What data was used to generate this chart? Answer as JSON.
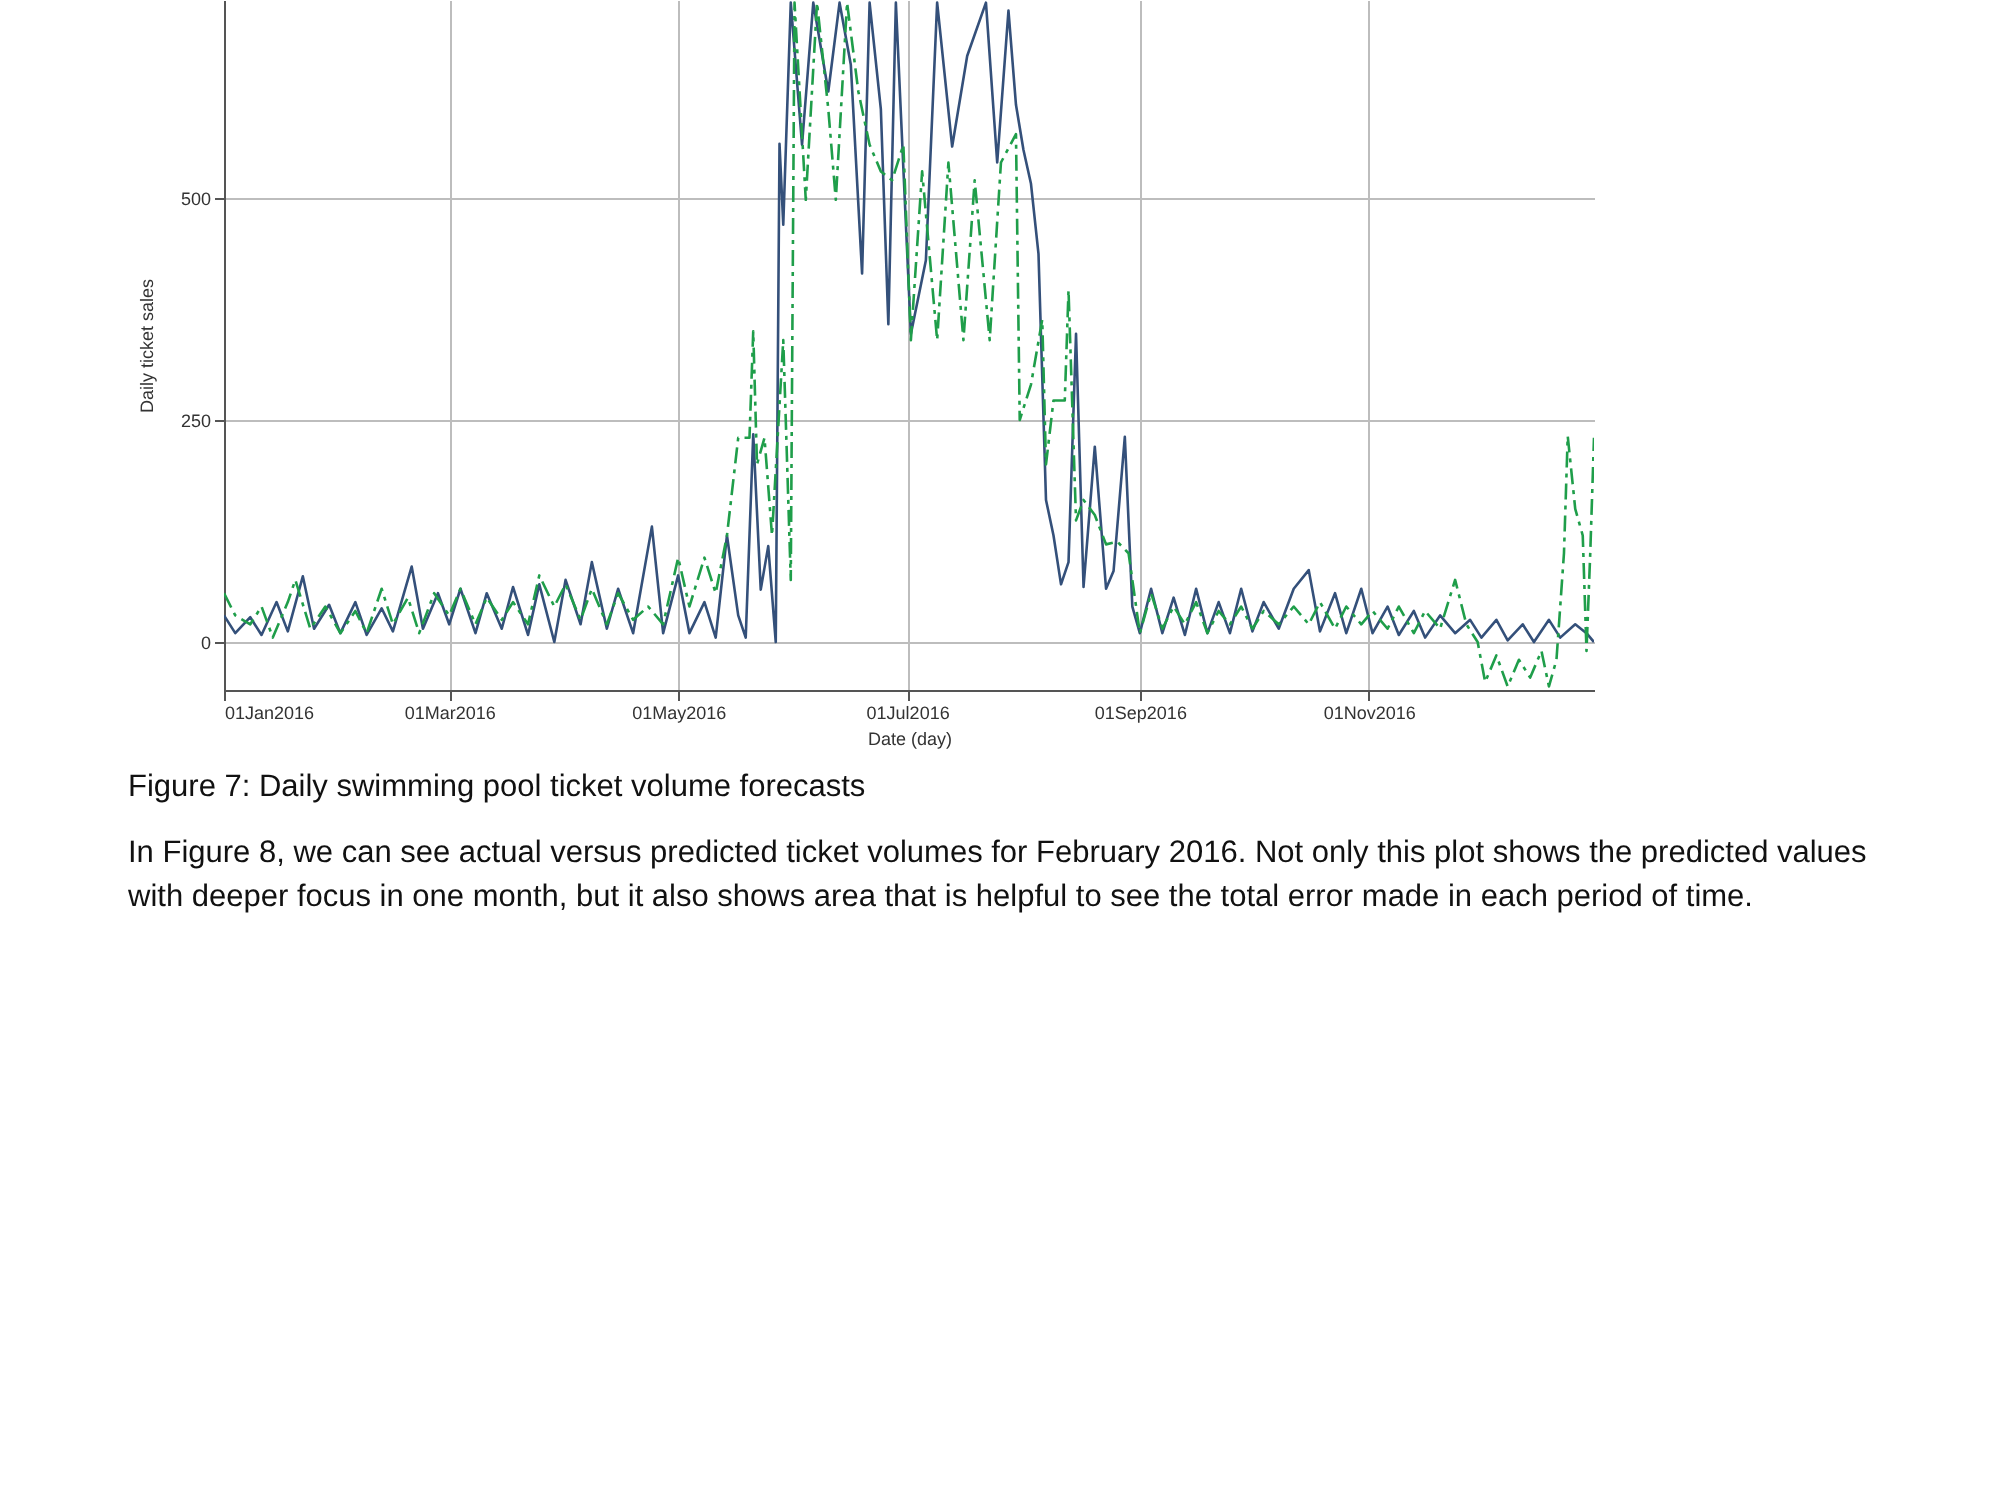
{
  "chart_data": {
    "type": "line",
    "xlabel": "Date (day)",
    "ylabel": "Daily ticket sales",
    "xlim": [
      "2016-01-01",
      "2016-12-31"
    ],
    "xticks": [
      {
        "value": "2016-01-01",
        "label": "01Jan2016"
      },
      {
        "value": "2016-03-01",
        "label": "01Mar2016"
      },
      {
        "value": "2016-05-01",
        "label": "01May2016"
      },
      {
        "value": "2016-07-01",
        "label": "01Jul2016"
      },
      {
        "value": "2016-09-01",
        "label": "01Sep2016"
      },
      {
        "value": "2016-11-01",
        "label": "01Nov2016"
      }
    ],
    "ylim": [
      -54,
      723
    ],
    "yticks": [
      0,
      250,
      500
    ],
    "grid": true,
    "series": [
      {
        "color": "#34507a",
        "line_style": "solid",
        "x": [
          "2016-01-01",
          "2016-01-04",
          "2016-01-08",
          "2016-01-11",
          "2016-01-15",
          "2016-01-18",
          "2016-01-22",
          "2016-01-25",
          "2016-01-29",
          "2016-02-01",
          "2016-02-05",
          "2016-02-08",
          "2016-02-12",
          "2016-02-15",
          "2016-02-20",
          "2016-02-23",
          "2016-02-27",
          "2016-03-01",
          "2016-03-04",
          "2016-03-08",
          "2016-03-11",
          "2016-03-15",
          "2016-03-18",
          "2016-03-22",
          "2016-03-25",
          "2016-03-29",
          "2016-04-01",
          "2016-04-05",
          "2016-04-08",
          "2016-04-12",
          "2016-04-15",
          "2016-04-19",
          "2016-04-24",
          "2016-04-27",
          "2016-05-01",
          "2016-05-04",
          "2016-05-08",
          "2016-05-11",
          "2016-05-14",
          "2016-05-17",
          "2016-05-19",
          "2016-05-21",
          "2016-05-23",
          "2016-05-25",
          "2016-05-27",
          "2016-05-28",
          "2016-05-29",
          "2016-05-31",
          "2016-06-03",
          "2016-06-06",
          "2016-06-10",
          "2016-06-13",
          "2016-06-16",
          "2016-06-19",
          "2016-06-21",
          "2016-06-24",
          "2016-06-26",
          "2016-06-28",
          "2016-07-02",
          "2016-07-06",
          "2016-07-09",
          "2016-07-13",
          "2016-07-17",
          "2016-07-22",
          "2016-07-25",
          "2016-07-28",
          "2016-07-30",
          "2016-08-01",
          "2016-08-03",
          "2016-08-05",
          "2016-08-07",
          "2016-08-09",
          "2016-08-11",
          "2016-08-13",
          "2016-08-15",
          "2016-08-17",
          "2016-08-20",
          "2016-08-23",
          "2016-08-25",
          "2016-08-28",
          "2016-08-30",
          "2016-09-01",
          "2016-09-04",
          "2016-09-07",
          "2016-09-10",
          "2016-09-13",
          "2016-09-16",
          "2016-09-19",
          "2016-09-22",
          "2016-09-25",
          "2016-09-28",
          "2016-10-01",
          "2016-10-04",
          "2016-10-08",
          "2016-10-12",
          "2016-10-16",
          "2016-10-19",
          "2016-10-23",
          "2016-10-26",
          "2016-10-30",
          "2016-11-02",
          "2016-11-06",
          "2016-11-09",
          "2016-11-13",
          "2016-11-16",
          "2016-11-20",
          "2016-11-24",
          "2016-11-28",
          "2016-12-01",
          "2016-12-05",
          "2016-12-08",
          "2016-12-12",
          "2016-12-15",
          "2016-12-19",
          "2016-12-22",
          "2016-12-26",
          "2016-12-29",
          "2016-12-31"
        ],
        "values": [
          30,
          10,
          28,
          8,
          45,
          12,
          74,
          15,
          42,
          10,
          45,
          8,
          38,
          12,
          85,
          15,
          55,
          20,
          60,
          10,
          55,
          15,
          62,
          8,
          65,
          0,
          70,
          20,
          90,
          15,
          60,
          10,
          130,
          10,
          75,
          10,
          45,
          5,
          120,
          30,
          5,
          234,
          59,
          108,
          0,
          561,
          470,
          720,
          560,
          720,
          620,
          720,
          650,
          415,
          720,
          600,
          358,
          720,
          347,
          430,
          720,
          558,
          660,
          720,
          540,
          711,
          605,
          554,
          516,
          437,
          160,
          120,
          65,
          90,
          347,
          62,
          220,
          60,
          80,
          231,
          40,
          10,
          60,
          10,
          50,
          8,
          60,
          10,
          45,
          10,
          60,
          12,
          45,
          15,
          60,
          81,
          12,
          55,
          10,
          60,
          10,
          40,
          8,
          35,
          5,
          30,
          10,
          25,
          5,
          25,
          2,
          20,
          0,
          25,
          5,
          20,
          10,
          0
        ]
      },
      {
        "color": "#1f9e4a",
        "line_style": "dashed",
        "x": [
          "2016-01-01",
          "2016-01-04",
          "2016-01-08",
          "2016-01-11",
          "2016-01-14",
          "2016-01-18",
          "2016-01-20",
          "2016-01-24",
          "2016-01-28",
          "2016-02-01",
          "2016-02-05",
          "2016-02-08",
          "2016-02-12",
          "2016-02-15",
          "2016-02-19",
          "2016-02-22",
          "2016-02-26",
          "2016-03-01",
          "2016-03-04",
          "2016-03-08",
          "2016-03-11",
          "2016-03-15",
          "2016-03-18",
          "2016-03-22",
          "2016-03-25",
          "2016-03-29",
          "2016-04-01",
          "2016-04-05",
          "2016-04-08",
          "2016-04-12",
          "2016-04-15",
          "2016-04-19",
          "2016-04-23",
          "2016-04-27",
          "2016-05-01",
          "2016-05-04",
          "2016-05-08",
          "2016-05-11",
          "2016-05-14",
          "2016-05-17",
          "2016-05-20",
          "2016-05-21",
          "2016-05-22",
          "2016-05-24",
          "2016-05-26",
          "2016-05-29",
          "2016-05-31",
          "2016-06-01",
          "2016-06-04",
          "2016-06-07",
          "2016-06-10",
          "2016-06-12",
          "2016-06-15",
          "2016-06-18",
          "2016-06-21",
          "2016-06-24",
          "2016-06-27",
          "2016-06-30",
          "2016-07-02",
          "2016-07-05",
          "2016-07-09",
          "2016-07-12",
          "2016-07-16",
          "2016-07-19",
          "2016-07-23",
          "2016-07-26",
          "2016-07-30",
          "2016-07-31",
          "2016-08-03",
          "2016-08-06",
          "2016-08-07",
          "2016-08-09",
          "2016-08-12",
          "2016-08-13",
          "2016-08-15",
          "2016-08-17",
          "2016-08-20",
          "2016-08-23",
          "2016-08-26",
          "2016-08-29",
          "2016-09-01",
          "2016-09-04",
          "2016-09-07",
          "2016-09-10",
          "2016-09-13",
          "2016-09-16",
          "2016-09-19",
          "2016-09-22",
          "2016-09-25",
          "2016-09-28",
          "2016-10-01",
          "2016-10-04",
          "2016-10-08",
          "2016-10-12",
          "2016-10-16",
          "2016-10-19",
          "2016-10-23",
          "2016-10-26",
          "2016-10-30",
          "2016-11-02",
          "2016-11-06",
          "2016-11-09",
          "2016-11-13",
          "2016-11-16",
          "2016-11-20",
          "2016-11-24",
          "2016-11-27",
          "2016-11-30",
          "2016-12-02",
          "2016-12-05",
          "2016-12-08",
          "2016-12-11",
          "2016-12-14",
          "2016-12-17",
          "2016-12-19",
          "2016-12-21",
          "2016-12-23",
          "2016-12-24",
          "2016-12-26",
          "2016-12-28",
          "2016-12-29",
          "2016-12-30",
          "2016-12-31"
        ],
        "values": [
          55,
          30,
          20,
          40,
          5,
          45,
          70,
          15,
          40,
          10,
          35,
          10,
          60,
          20,
          50,
          10,
          55,
          30,
          60,
          20,
          50,
          25,
          45,
          20,
          75,
          40,
          65,
          25,
          60,
          20,
          55,
          25,
          40,
          20,
          95,
          40,
          95,
          55,
          120,
          230,
          230,
          350,
          200,
          230,
          120,
          340,
          70,
          720,
          498,
          720,
          600,
          498,
          720,
          620,
          560,
          530,
          520,
          560,
          340,
          530,
          340,
          540,
          340,
          520,
          340,
          540,
          572,
          250,
          290,
          363,
          200,
          272,
          272,
          396,
          137,
          160,
          143,
          110,
          113,
          100,
          10,
          55,
          15,
          40,
          20,
          45,
          10,
          35,
          20,
          40,
          15,
          35,
          20,
          40,
          20,
          45,
          15,
          40,
          20,
          35,
          15,
          40,
          10,
          35,
          15,
          70,
          20,
          0,
          -45,
          -15,
          -50,
          -20,
          -40,
          -10,
          -50,
          -20,
          100,
          232,
          150,
          120,
          -10,
          100,
          230
        ]
      }
    ],
    "annotations": [
      "Figure 7: Daily swimming pool ticket volume forecasts",
      "In Figure 8, we can see actual versus predicted ticket volumes for February 2016. Not only this plot shows the predicted values with deeper focus in one month, but it also shows area that is helpful to see the total error made in each period of time."
    ]
  }
}
